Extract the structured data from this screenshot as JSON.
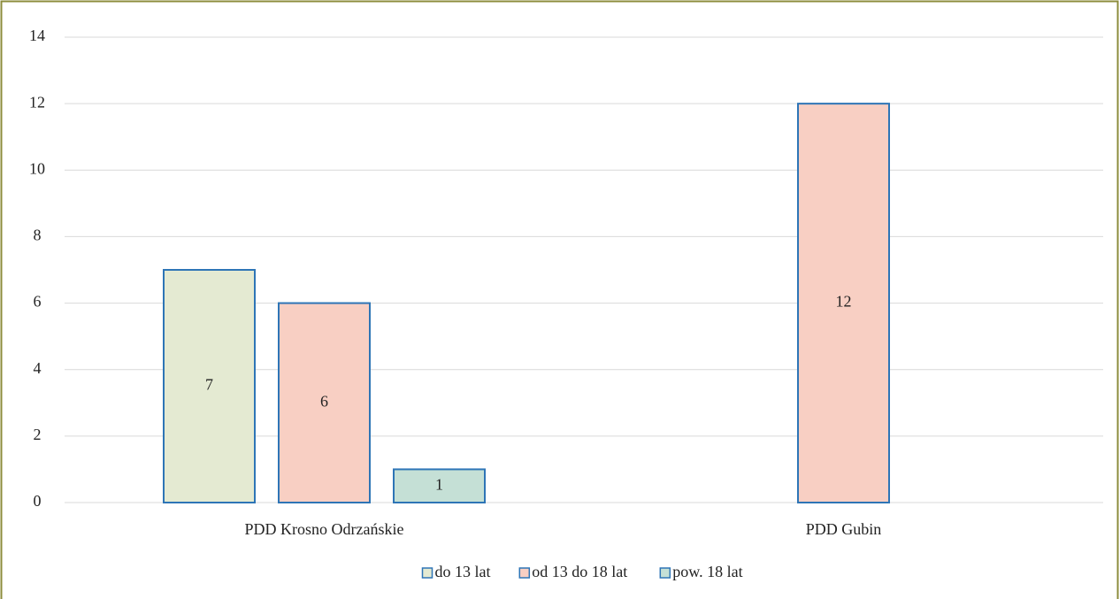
{
  "chart_data": {
    "type": "bar",
    "categories": [
      "PDD Krosno Odrzańskie",
      "PDD Gubin"
    ],
    "series": [
      {
        "name": "do 13 lat",
        "color": "#e4ead2",
        "values": [
          7,
          null
        ]
      },
      {
        "name": "od 13 do 18 lat",
        "color": "#f8cfc3",
        "values": [
          6,
          12
        ]
      },
      {
        "name": "pow. 18 lat",
        "color": "#c5e0d6",
        "values": [
          1,
          null
        ]
      }
    ],
    "bar_edge_color": "#2e75b6",
    "ylim": [
      0,
      14
    ],
    "yticks": [
      0,
      2,
      4,
      6,
      8,
      10,
      12,
      14
    ],
    "grid": true,
    "legend": "bottom"
  }
}
